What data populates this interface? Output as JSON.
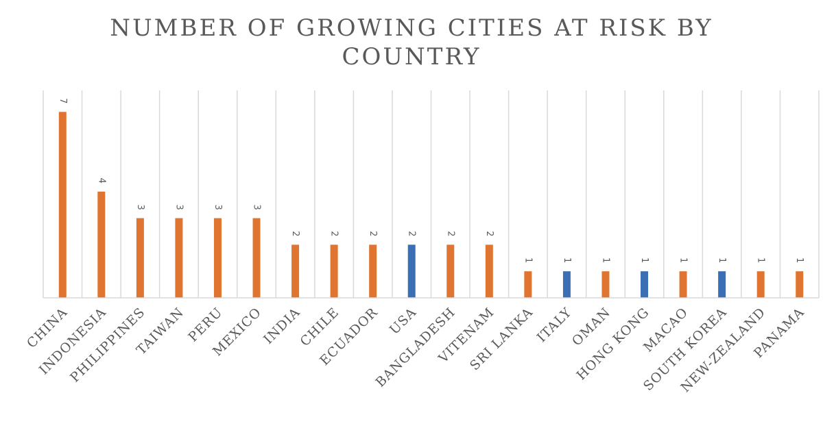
{
  "title_line1": "NUMBER OF GROWING CITIES AT RISK BY",
  "title_line2": "COUNTRY",
  "colors": {
    "orange": "#E07532",
    "blue": "#3A6EB5",
    "grid": "#D9D9D9",
    "axis": "#D9D9D9"
  },
  "chart_data": {
    "type": "bar",
    "title": "NUMBER OF GROWING CITIES AT RISK BY COUNTRY",
    "xlabel": "",
    "ylabel": "",
    "ylim": [
      0,
      7.5
    ],
    "grid": "vertical",
    "legend": "none",
    "categories": [
      "CHINA",
      "INDONESIA",
      "PHILIPPINES",
      "TAIWAN",
      "PERU",
      "MEXICO",
      "INDIA",
      "CHILE",
      "ECUADOR",
      "USA",
      "BANGLADESH",
      "VITENAM",
      "SRI LANKA",
      "ITALY",
      "OMAN",
      "HONG KONG",
      "MACAO",
      "SOUTH KOREA",
      "NEW-ZEALAND",
      "PANAMA"
    ],
    "values": [
      7,
      4,
      3,
      3,
      3,
      3,
      2,
      2,
      2,
      2,
      2,
      2,
      1,
      1,
      1,
      1,
      1,
      1,
      1,
      1
    ],
    "bar_colors": [
      "orange",
      "orange",
      "orange",
      "orange",
      "orange",
      "orange",
      "orange",
      "orange",
      "orange",
      "blue",
      "orange",
      "orange",
      "orange",
      "blue",
      "orange",
      "blue",
      "orange",
      "blue",
      "orange",
      "orange"
    ]
  }
}
